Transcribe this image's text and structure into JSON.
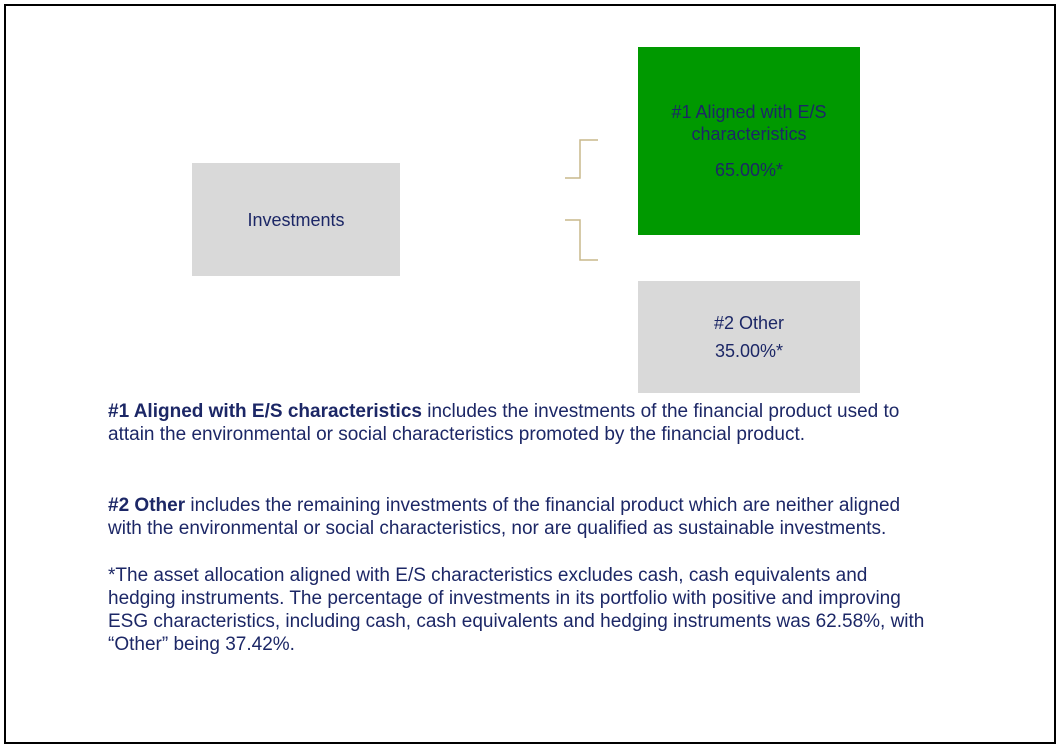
{
  "nodes": [
    {
      "label": "Investments"
    },
    {
      "label": "#1 Aligned with E/S characteristics",
      "value": "65.00%*"
    },
    {
      "label": "#2 Other",
      "value": "35.00%*"
    }
  ],
  "paragraphs": [
    {
      "bold": "#1 Aligned with E/S characteristics",
      "text": " includes the investments of the financial product used to attain the environmental or social characteristics promoted by the financial product."
    },
    {
      "bold": "#2 Other",
      "text": " includes the remaining investments of the financial product which are neither aligned with the environmental or social characteristics, nor are qualified as sustainable investments."
    },
    {
      "text": "*The asset allocation aligned with E/S characteristics excludes cash, cash equivalents and hedging instruments. The percentage of investments in its portfolio with positive and improving ESG characteristics, including cash, cash equivalents and hedging instruments was 62.58%, with “Other” being 37.42%."
    }
  ]
}
